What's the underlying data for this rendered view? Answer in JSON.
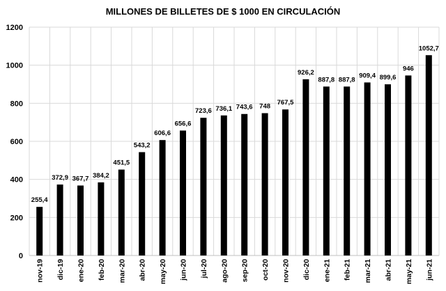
{
  "chart_data": {
    "type": "bar",
    "title": "MILLONES DE BILLETES DE $ 1000 EN CIRCULACIÓN",
    "xlabel": "",
    "ylabel": "",
    "ylim": [
      0,
      1200
    ],
    "yticks": [
      0,
      200,
      400,
      600,
      800,
      1000,
      1200
    ],
    "grid": true,
    "categories": [
      "nov-19",
      "dic-19",
      "ene-20",
      "feb-20",
      "mar-20",
      "abr-20",
      "may-20",
      "jun-20",
      "jul-20",
      "ago-20",
      "sep-20",
      "oct-20",
      "nov-20",
      "dic-20",
      "ene-21",
      "feb-21",
      "mar-21",
      "abr-21",
      "may-21",
      "jun-21"
    ],
    "values": [
      255.4,
      372.9,
      367.7,
      384.2,
      451.5,
      543.2,
      606.6,
      656.6,
      723.6,
      736.1,
      743.6,
      748,
      767.5,
      926.2,
      887.8,
      887.8,
      909.4,
      899.6,
      946,
      1052.7
    ],
    "data_labels": [
      "255,4",
      "372,9",
      "367,7",
      "384,2",
      "451,5",
      "543,2",
      "606,6",
      "656,6",
      "723,6",
      "736,1",
      "743,6",
      "748",
      "767,5",
      "926,2",
      "887,8",
      "887,8",
      "909,4",
      "899,6",
      "946",
      "1052,7"
    ],
    "bar_color": "#000000",
    "grid_color": "#d9d9d9"
  }
}
